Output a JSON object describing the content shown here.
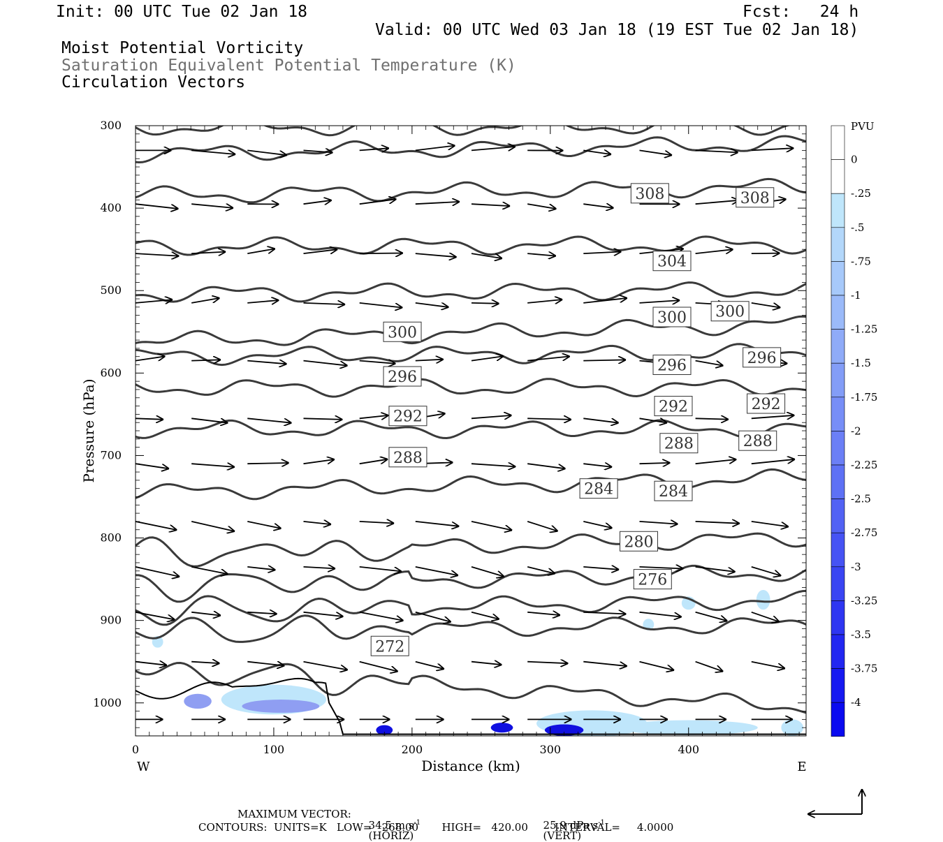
{
  "header": {
    "init": "Init: 00 UTC Tue 02 Jan 18",
    "fcst": "Fcst:   24 h",
    "valid": "Valid: 00 UTC Wed 03 Jan 18 (19 EST Tue 02 Jan 18)",
    "field1": "Moist Potential Vorticity",
    "field2": "Saturation Equivalent Potential Temperature (K)",
    "field3": "Circulation Vectors"
  },
  "footer": {
    "max_vector_label": "MAXIMUM VECTOR:",
    "horiz_value": "34.5 m s",
    "horiz_tag": "(HORIZ)",
    "vert_value": "25.9 dPa s",
    "vert_tag": "(VERT)",
    "exponent": "-1",
    "contours": "CONTOURS:  UNITS=K   LOW=   268.00       HIGH=   420.00        INTERVAL=     4.0000"
  },
  "colors": {
    "contour": "#3a3a3a",
    "arrow": "#000000",
    "pv_light": "#bfe6fb",
    "pv_mid": "#8f9ef2",
    "pv_dark": "#1010e0"
  },
  "chart_data": {
    "type": "cross-section",
    "xlabel": "Distance (km)",
    "ylabel": "Pressure (hPa)",
    "xlim": [
      0,
      485
    ],
    "ylim": [
      1040,
      300
    ],
    "x_ticks": [
      "0",
      "100",
      "200",
      "300",
      "400"
    ],
    "x_tick_values": [
      0,
      100,
      200,
      300,
      400
    ],
    "y_ticks": [
      "300",
      "400",
      "500",
      "600",
      "700",
      "800",
      "900",
      "1000"
    ],
    "y_tick_values": [
      300,
      400,
      500,
      600,
      700,
      800,
      900,
      1000
    ],
    "west_label": "W",
    "east_label": "E",
    "colorbar": {
      "unit": "PVU",
      "labels": [
        "0",
        "-.25",
        "-.5",
        "-.75",
        "-1",
        "-1.25",
        "-1.5",
        "-1.75",
        "-2",
        "-2.25",
        "-2.5",
        "-2.75",
        "-3",
        "-3.25",
        "-3.5",
        "-3.75",
        "-4"
      ]
    },
    "contour_levels": [
      272,
      276,
      280,
      284,
      288,
      292,
      296,
      300,
      304,
      308
    ],
    "contour_labels": [
      {
        "text": "308",
        "x": 372,
        "p": 382
      },
      {
        "text": "308",
        "x": 448,
        "p": 387
      },
      {
        "text": "304",
        "x": 388,
        "p": 464
      },
      {
        "text": "300",
        "x": 193,
        "p": 550
      },
      {
        "text": "300",
        "x": 388,
        "p": 532
      },
      {
        "text": "300",
        "x": 430,
        "p": 525
      },
      {
        "text": "296",
        "x": 388,
        "p": 590
      },
      {
        "text": "296",
        "x": 453,
        "p": 581
      },
      {
        "text": "296",
        "x": 193,
        "p": 604
      },
      {
        "text": "292",
        "x": 197,
        "p": 652
      },
      {
        "text": "292",
        "x": 389,
        "p": 640
      },
      {
        "text": "292",
        "x": 456,
        "p": 637
      },
      {
        "text": "288",
        "x": 197,
        "p": 702
      },
      {
        "text": "288",
        "x": 393,
        "p": 685
      },
      {
        "text": "288",
        "x": 450,
        "p": 682
      },
      {
        "text": "284",
        "x": 335,
        "p": 740
      },
      {
        "text": "284",
        "x": 389,
        "p": 743
      },
      {
        "text": "280",
        "x": 364,
        "p": 804
      },
      {
        "text": "276",
        "x": 374,
        "p": 850
      },
      {
        "text": "272",
        "x": 184,
        "p": 931
      }
    ],
    "max_vector_horiz_m_s": 34.5,
    "max_vector_vert_dPa_s": 25.9
  }
}
